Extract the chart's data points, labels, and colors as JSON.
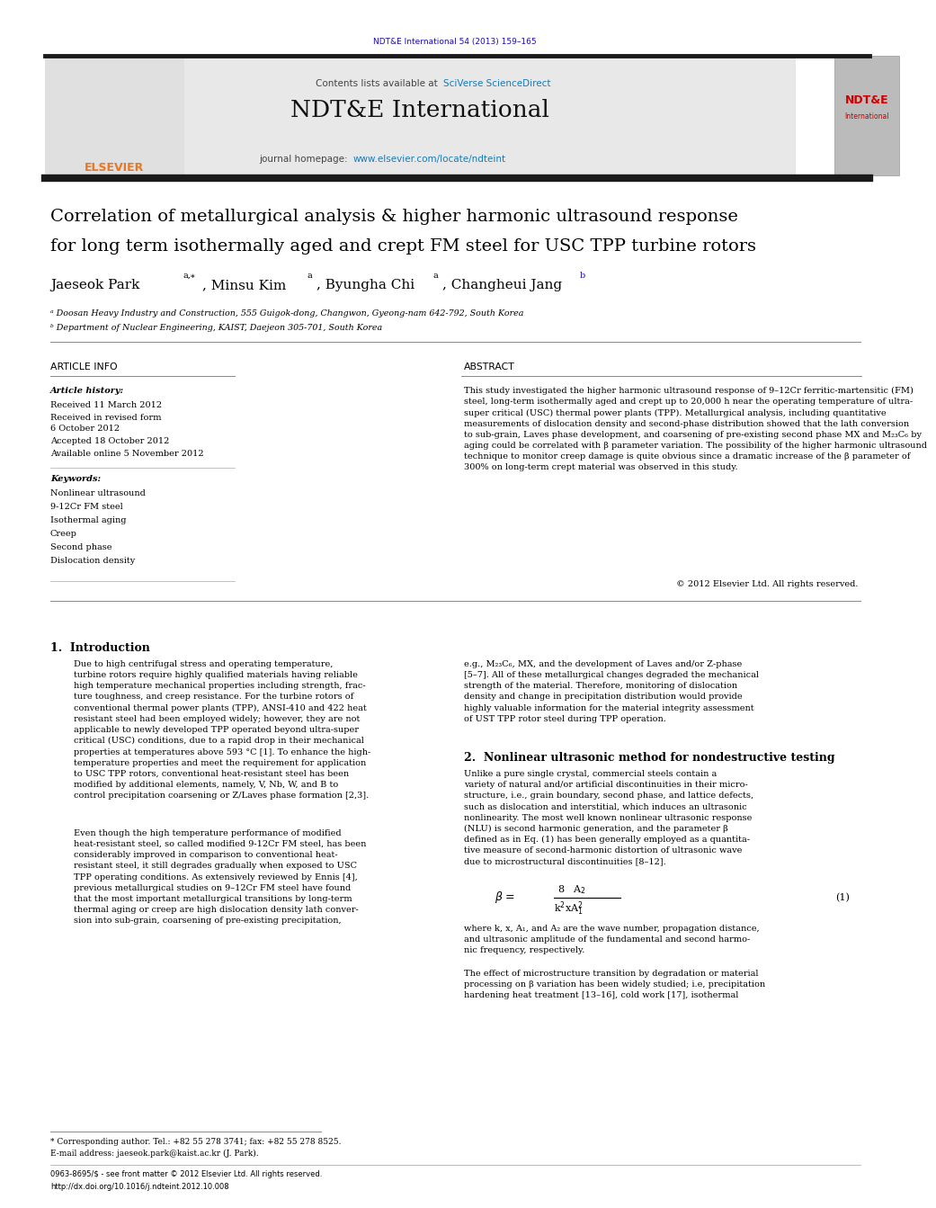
{
  "page_width": 9.92,
  "page_height": 13.23,
  "bg_color": "#ffffff",
  "journal_ref": "NDT&E International 54 (2013) 159–165",
  "journal_ref_color": "#1a0dab",
  "header_bg": "#e8e8e8",
  "header_text1": "Contents lists available at SciVerse ScienceDirect",
  "journal_name": "NDT&E International",
  "journal_homepage": "journal homepage: www.elsevier.com/locate/ndteint",
  "thick_bar_color": "#1a1a1a",
  "article_title_line1": "Correlation of metallurgical analysis & higher harmonic ultrasound response",
  "article_title_line2": "for long term isothermally aged and crept FM steel for USC TPP turbine rotors",
  "affil1": "ᵃ Doosan Heavy Industry and Construction, 555 Guigok-dong, Changwon, Gyeong-nam 642-792, South Korea",
  "affil2": "ᵇ Department of Nuclear Engineering, KAIST, Daejeon 305-701, South Korea",
  "article_info_header": "ARTICLE INFO",
  "abstract_header": "ABSTRACT",
  "article_history_label": "Article history:",
  "received1": "Received 11 March 2012",
  "received2": "Received in revised form",
  "received3": "6 October 2012",
  "accepted": "Accepted 18 October 2012",
  "available": "Available online 5 November 2012",
  "keywords_label": "Keywords:",
  "keyword1": "Nonlinear ultrasound",
  "keyword2": "9-12Cr FM steel",
  "keyword3": "Isothermal aging",
  "keyword4": "Creep",
  "keyword5": "Second phase",
  "keyword6": "Dislocation density",
  "abstract_text": "This study investigated the higher harmonic ultrasound response of 9–12Cr ferritic-martensitic (FM)\nsteel, long-term isothermally aged and crept up to 20,000 h near the operating temperature of ultra-\nsuper critical (USC) thermal power plants (TPP). Metallurgical analysis, including quantitative\nmeasurements of dislocation density and second-phase distribution showed that the lath conversion\nto sub-grain, Laves phase development, and coarsening of pre-existing second phase MX and M₂₃C₆ by\naging could be correlated with β parameter variation. The possibility of the higher harmonic ultrasound\ntechnique to monitor creep damage is quite obvious since a dramatic increase of the β parameter of\n300% on long-term crept material was observed in this study.",
  "copyright": "© 2012 Elsevier Ltd. All rights reserved.",
  "intro_header": "1.  Introduction",
  "intro_text1": "Due to high centrifugal stress and operating temperature,\nturbine rotors require highly qualified materials having reliable\nhigh temperature mechanical properties including strength, frac-\nture toughness, and creep resistance. For the turbine rotors of\nconventional thermal power plants (TPP), ANSI-410 and 422 heat\nresistant steel had been employed widely; however, they are not\napplicable to newly developed TPP operated beyond ultra-super\ncritical (USC) conditions, due to a rapid drop in their mechanical\nproperties at temperatures above 593 °C [1]. To enhance the high-\ntemperature properties and meet the requirement for application\nto USC TPP rotors, conventional heat-resistant steel has been\nmodified by additional elements, namely, V, Nb, W, and B to\ncontrol precipitation coarsening or Z/Laves phase formation [2,3].",
  "intro_text2": "Even though the high temperature performance of modified\nheat-resistant steel, so called modified 9-12Cr FM steel, has been\nconsiderably improved in comparison to conventional heat-\nresistant steel, it still degrades gradually when exposed to USC\nTPP operating conditions. As extensively reviewed by Ennis [4],\nprevious metallurgical studies on 9–12Cr FM steel have found\nthat the most important metallurgical transitions by long-term\nthermal aging or creep are high dislocation density lath conver-\nsion into sub-grain, coarsening of pre-existing precipitation,",
  "right_col_text1": "e.g., M₂₃C₆, MX, and the development of Laves and/or Z-phase\n[5–7]. All of these metallurgical changes degraded the mechanical\nstrength of the material. Therefore, monitoring of dislocation\ndensity and change in precipitation distribution would provide\nhighly valuable information for the material integrity assessment\nof UST TPP rotor steel during TPP operation.",
  "section2_header": "2.  Nonlinear ultrasonic method for nondestructive testing",
  "section2_text": "Unlike a pure single crystal, commercial steels contain a\nvariety of natural and/or artificial discontinuities in their micro-\nstructure, i.e., grain boundary, second phase, and lattice defects,\nsuch as dislocation and interstitial, which induces an ultrasonic\nnonlinearity. The most well known nonlinear ultrasonic response\n(NLU) is second harmonic generation, and the parameter β\ndefined as in Eq. (1) has been generally employed as a quantita-\ntive measure of second-harmonic distortion of ultrasonic wave\ndue to microstructural discontinuities [8–12].",
  "section2_text2": "where k, x, A₁, and A₂ are the wave number, propagation distance,\nand ultrasonic amplitude of the fundamental and second harmo-\nnic frequency, respectively.",
  "section2_text3": "The effect of microstructure transition by degradation or material\nprocessing on β variation has been widely studied; i.e, precipitation\nhardening heat treatment [13–16], cold work [17], isothermal",
  "footnote_text": "* Corresponding author. Tel.: +82 55 278 3741; fax: +82 55 278 8525.",
  "footnote_email": "E-mail address: jaeseok.park@kaist.ac.kr (J. Park).",
  "footer_issn": "0963-8695/$ - see front matter © 2012 Elsevier Ltd. All rights reserved.",
  "footer_doi": "http://dx.doi.org/10.1016/j.ndteint.2012.10.008"
}
